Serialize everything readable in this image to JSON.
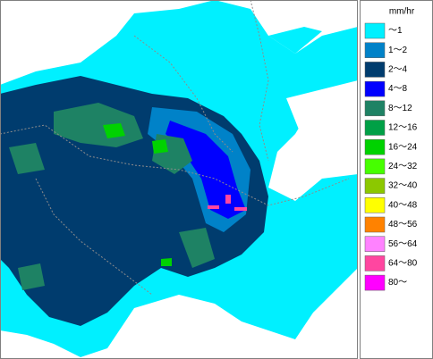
{
  "legend": {
    "unit": "mm/hr",
    "items": [
      {
        "label": "～1",
        "color": "#00f0ff"
      },
      {
        "label": "1～2",
        "color": "#0082c8"
      },
      {
        "label": "2～4",
        "color": "#003c6e"
      },
      {
        "label": "4～8",
        "color": "#0000ff"
      },
      {
        "label": "8～12",
        "color": "#1e8264"
      },
      {
        "label": "12～16",
        "color": "#00a046"
      },
      {
        "label": "16～24",
        "color": "#00d200"
      },
      {
        "label": "24～32",
        "color": "#46ff00"
      },
      {
        "label": "32～40",
        "color": "#8cc800"
      },
      {
        "label": "40～48",
        "color": "#ffff00"
      },
      {
        "label": "48～56",
        "color": "#ff8200"
      },
      {
        "label": "56～64",
        "color": "#ff82ff"
      },
      {
        "label": "64～80",
        "color": "#ff46a0"
      },
      {
        "label": "80～",
        "color": "#ff00ff"
      }
    ]
  }
}
